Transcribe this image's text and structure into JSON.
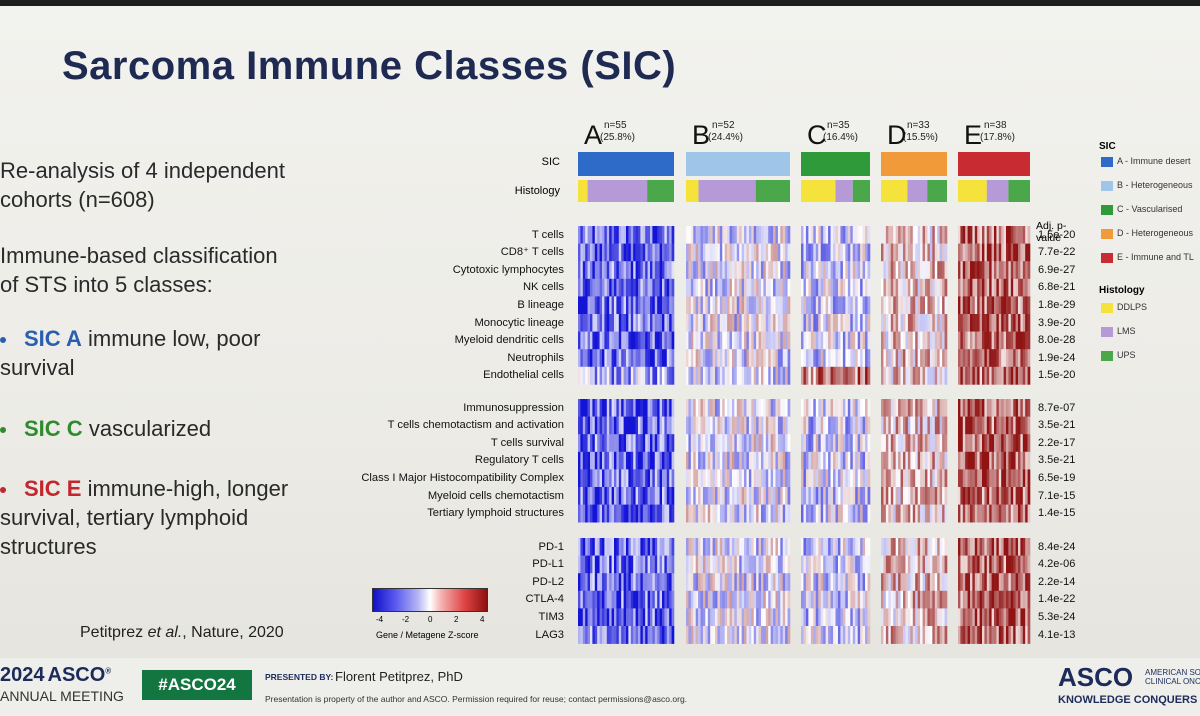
{
  "title": "Sarcoma Immune Classes (SIC)",
  "intro": [
    "Re-analysis of  4 independent",
    "cohorts (n=608)"
  ],
  "classification": [
    "Immune-based classification",
    "of STS into 5 classes:"
  ],
  "bullets": [
    {
      "name": "SIC A",
      "color": "#2a5fb0",
      "lines": [
        "immune low, poor",
        "survival"
      ]
    },
    {
      "name": "SIC C",
      "color": "#2e8b2e",
      "lines": [
        "vascularized"
      ]
    },
    {
      "name": "SIC E",
      "color": "#c4262e",
      "lines": [
        "immune-high, longer",
        "survival, tertiary lymphoid",
        "structures"
      ]
    }
  ],
  "citation": {
    "author": "Petitprez ",
    "etal": "et al.",
    "rest": ", Nature, 2020"
  },
  "classes": [
    {
      "letter": "A",
      "n": "n=55",
      "pct": "(25.8%)",
      "color": "#2e6bc9"
    },
    {
      "letter": "B",
      "n": "n=52",
      "pct": "(24.4%)",
      "color": "#9fc6e8"
    },
    {
      "letter": "C",
      "n": "n=35",
      "pct": "(16.4%)",
      "color": "#2f9a3a"
    },
    {
      "letter": "D",
      "n": "n=33",
      "pct": "(15.5%)",
      "color": "#f09a3a"
    },
    {
      "letter": "E",
      "n": "n=38",
      "pct": "(17.8%)",
      "color": "#c92b33"
    }
  ],
  "annotation_labels": {
    "sic": "SIC",
    "histology": "Histology"
  },
  "pvalue_header": "Adj. p-value",
  "row_groups": [
    {
      "rows": [
        {
          "label": "T cells",
          "p": "1.5e-20"
        },
        {
          "label": "CD8⁺ T cells",
          "p": "7.7e-22"
        },
        {
          "label": "Cytotoxic lymphocytes",
          "p": "6.9e-27"
        },
        {
          "label": "NK cells",
          "p": "6.8e-21"
        },
        {
          "label": "B lineage",
          "p": "1.8e-29"
        },
        {
          "label": "Monocytic lineage",
          "p": "3.9e-20"
        },
        {
          "label": "Myeloid dendritic cells",
          "p": "8.0e-28"
        },
        {
          "label": "Neutrophils",
          "p": "1.9e-24"
        },
        {
          "label": "Endothelial cells",
          "p": "1.5e-20"
        }
      ]
    },
    {
      "rows": [
        {
          "label": "Immunosuppression",
          "p": "8.7e-07"
        },
        {
          "label": "T cells chemotactism and activation",
          "p": "3.5e-21"
        },
        {
          "label": "T cells survival",
          "p": "2.2e-17"
        },
        {
          "label": "Regulatory T cells",
          "p": "3.5e-21"
        },
        {
          "label": "Class I Major Histocompatibility Complex",
          "p": "6.5e-19"
        },
        {
          "label": "Myeloid cells chemotactism",
          "p": "7.1e-15"
        },
        {
          "label": "Tertiary lymphoid structures",
          "p": "1.4e-15"
        }
      ]
    },
    {
      "rows": [
        {
          "label": "PD-1",
          "p": "8.4e-24"
        },
        {
          "label": "PD-L1",
          "p": "4.2e-06"
        },
        {
          "label": "PD-L2",
          "p": "2.2e-14"
        },
        {
          "label": "CTLA-4",
          "p": "1.4e-22"
        },
        {
          "label": "TIM3",
          "p": "5.3e-24"
        },
        {
          "label": "LAG3",
          "p": "4.1e-13"
        }
      ]
    }
  ],
  "colorbar": {
    "ticks": [
      "-4",
      "-2",
      "0",
      "2",
      "4"
    ],
    "label": "Gene / Metagene Z-score"
  },
  "legend": {
    "sic_title": "SIC",
    "sic_items": [
      {
        "label": "A - Immune desert",
        "color": "#2e6bc9"
      },
      {
        "label": "B - Heterogeneous",
        "color": "#9fc6e8"
      },
      {
        "label": "C - Vascularised",
        "color": "#2f9a3a"
      },
      {
        "label": "D - Heterogeneous",
        "color": "#f09a3a"
      },
      {
        "label": "E - Immune and TL",
        "color": "#c92b33"
      }
    ],
    "hist_title": "Histology",
    "hist_items": [
      {
        "label": "DDLPS",
        "color": "#f5e23a"
      },
      {
        "label": "LMS",
        "color": "#b69ad8"
      },
      {
        "label": "UPS",
        "color": "#4aa84a"
      }
    ]
  },
  "footer": {
    "year": "2024",
    "asco": "ASCO",
    "meeting": "ANNUAL MEETING",
    "hashtag": "#ASCO24",
    "presented_by": "PRESENTED BY:",
    "presenter": "Florent Petitprez, PhD",
    "disclaimer": "Presentation is property of the author and ASCO. Permission required for reuse; contact permissions@asco.org.",
    "right_logo": "ASCO",
    "right_line1": "AMERICAN SOC",
    "right_line2": "CLINICAL ONC",
    "tagline": "KNOWLEDGE CONQUERS CA"
  }
}
